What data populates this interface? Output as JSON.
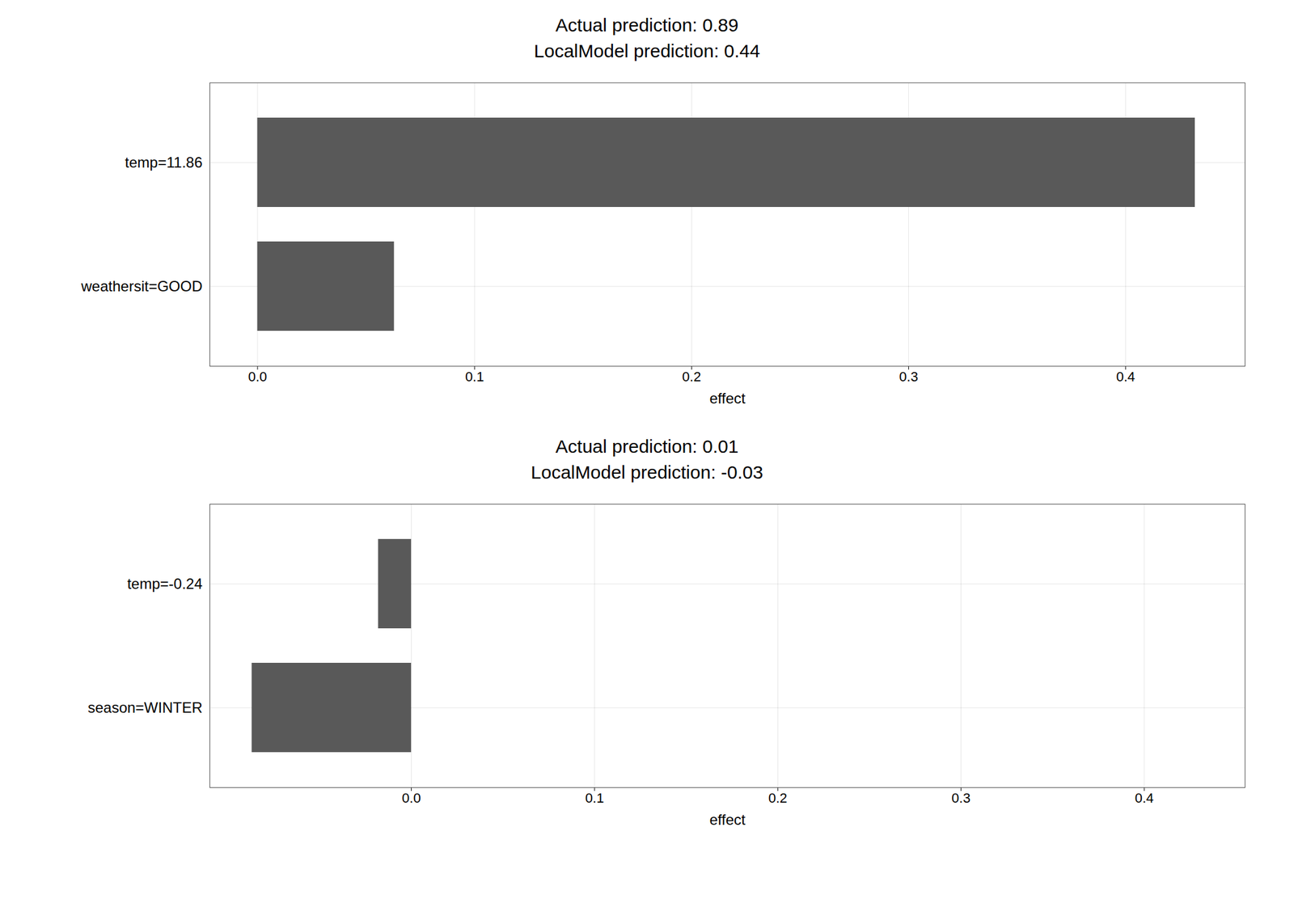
{
  "chart_data": [
    {
      "type": "bar",
      "orientation": "horizontal",
      "title": "Actual prediction: 0.89",
      "subtitle": "LocalModel prediction: 0.44",
      "categories": [
        "weathersit=GOOD",
        "temp=11.86"
      ],
      "values": [
        0.063,
        0.432
      ],
      "color": "#595959",
      "xlim": [
        -0.022,
        0.455
      ],
      "xticks": [
        {
          "value": 0.0,
          "label": "0.0"
        },
        0.1,
        0.2,
        0.3,
        0.4
      ],
      "x_label": "effect",
      "grid": true
    },
    {
      "type": "bar",
      "orientation": "horizontal",
      "title": "Actual prediction: 0.01",
      "subtitle": "LocalModel prediction: -0.03",
      "categories": [
        "season=WINTER",
        "temp=-0.24"
      ],
      "values": [
        -0.087,
        -0.018
      ],
      "color": "#595959",
      "xlim": [
        -0.11,
        0.455
      ],
      "xticks": [
        {
          "value": 0.0,
          "label": "0.0"
        },
        0.1,
        0.2,
        0.3,
        0.4
      ],
      "x_label": "effect",
      "grid": true
    }
  ]
}
